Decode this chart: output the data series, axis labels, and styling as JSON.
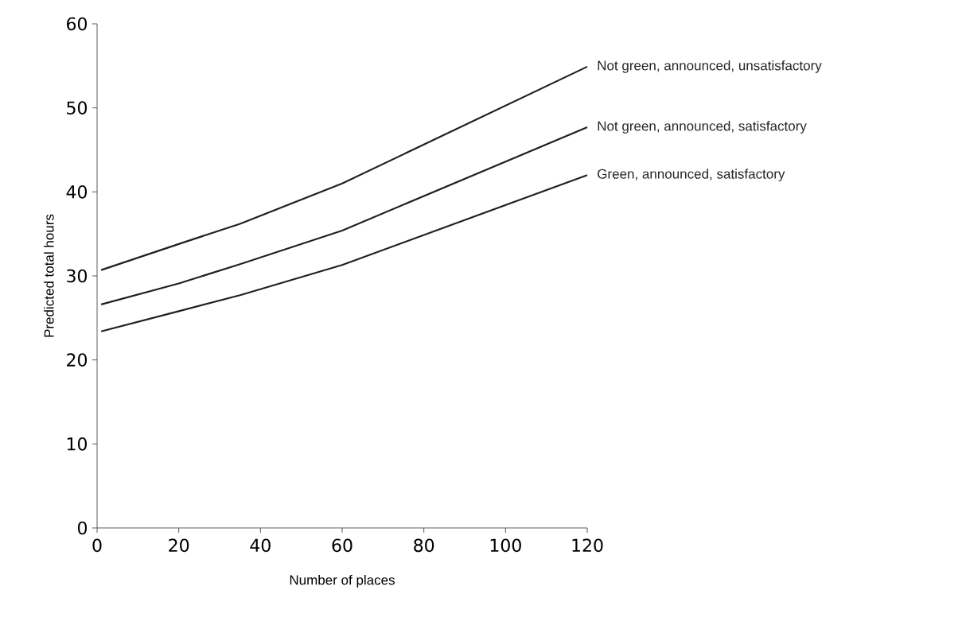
{
  "chart_data": {
    "type": "line",
    "xlabel": "Number of places",
    "ylabel": "Predicted total hours",
    "xlim": [
      0,
      120
    ],
    "xticks": [
      0,
      20,
      40,
      60,
      80,
      100,
      120
    ],
    "ylim": [
      0,
      60
    ],
    "yticks": [
      0,
      10,
      20,
      30,
      40,
      50,
      60
    ],
    "grid": false,
    "legend": false,
    "marker": "none",
    "line_style": "solid",
    "series": [
      {
        "name": "Not green, announced, unsatisfactory",
        "color": "#231f20",
        "x": [
          1,
          20,
          35,
          60,
          120
        ],
        "values": [
          30.7,
          33.8,
          36.2,
          41.0,
          54.9
        ]
      },
      {
        "name": "Not green, announced, satisfactory",
        "color": "#231f20",
        "x": [
          1,
          20,
          35,
          60,
          120
        ],
        "values": [
          26.6,
          29.1,
          31.4,
          35.4,
          47.7
        ]
      },
      {
        "name": "Green, announced, satisfactory",
        "color": "#231f20",
        "x": [
          1,
          20,
          35,
          60,
          120
        ],
        "values": [
          23.4,
          25.8,
          27.7,
          31.3,
          42.0
        ]
      }
    ]
  }
}
